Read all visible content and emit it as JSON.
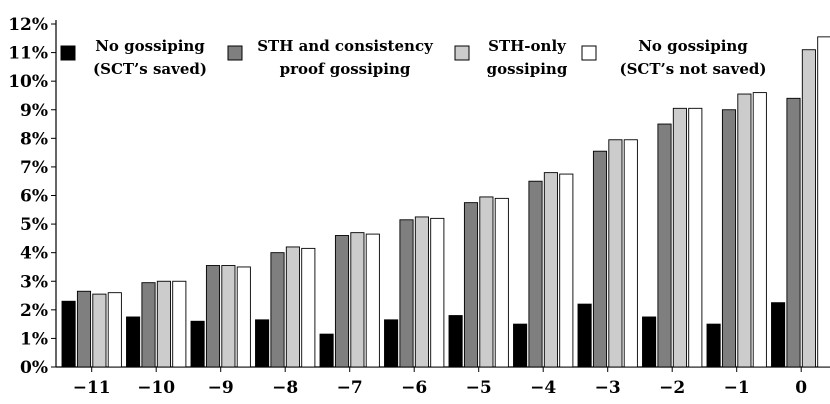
{
  "chart_data": {
    "type": "bar",
    "categories": [
      "−11",
      "−10",
      "−9",
      "−8",
      "−7",
      "−6",
      "−5",
      "−4",
      "−3",
      "−2",
      "−1",
      "0"
    ],
    "series": [
      {
        "name": "No gossiping (SCT’s saved)",
        "legend_lines": [
          "No gossiping",
          "(SCT’s saved)"
        ],
        "color": "#000000",
        "values": [
          2.3,
          1.75,
          1.6,
          1.65,
          1.15,
          1.65,
          1.8,
          1.5,
          2.2,
          1.75,
          1.5,
          2.25
        ]
      },
      {
        "name": "STH and consistency proof gossiping",
        "legend_lines": [
          "STH and consistency",
          "proof gossiping"
        ],
        "color": "#7f7f7f",
        "values": [
          2.65,
          2.95,
          3.55,
          4.0,
          4.6,
          5.15,
          5.75,
          6.5,
          7.55,
          8.5,
          9.0,
          9.4
        ]
      },
      {
        "name": "STH-only gossiping",
        "legend_lines": [
          "STH-only",
          "gossiping"
        ],
        "color": "#cccccc",
        "values": [
          2.55,
          3.0,
          3.55,
          4.2,
          4.7,
          5.25,
          5.95,
          6.8,
          7.95,
          9.05,
          9.55,
          11.1
        ]
      },
      {
        "name": "No gossiping (SCT’s not saved)",
        "legend_lines": [
          "No gossiping",
          "(SCT’s not saved)"
        ],
        "color": "#ffffff",
        "values": [
          2.6,
          3.0,
          3.5,
          4.15,
          4.65,
          5.2,
          5.9,
          6.75,
          7.95,
          9.05,
          9.6,
          11.55
        ]
      }
    ],
    "ylim": [
      0,
      12
    ],
    "yticks": [
      "0%",
      "1%",
      "2%",
      "3%",
      "4%",
      "5%",
      "6%",
      "7%",
      "8%",
      "9%",
      "10%",
      "11%",
      "12%"
    ],
    "grid": false,
    "legend_position": "top-left"
  }
}
